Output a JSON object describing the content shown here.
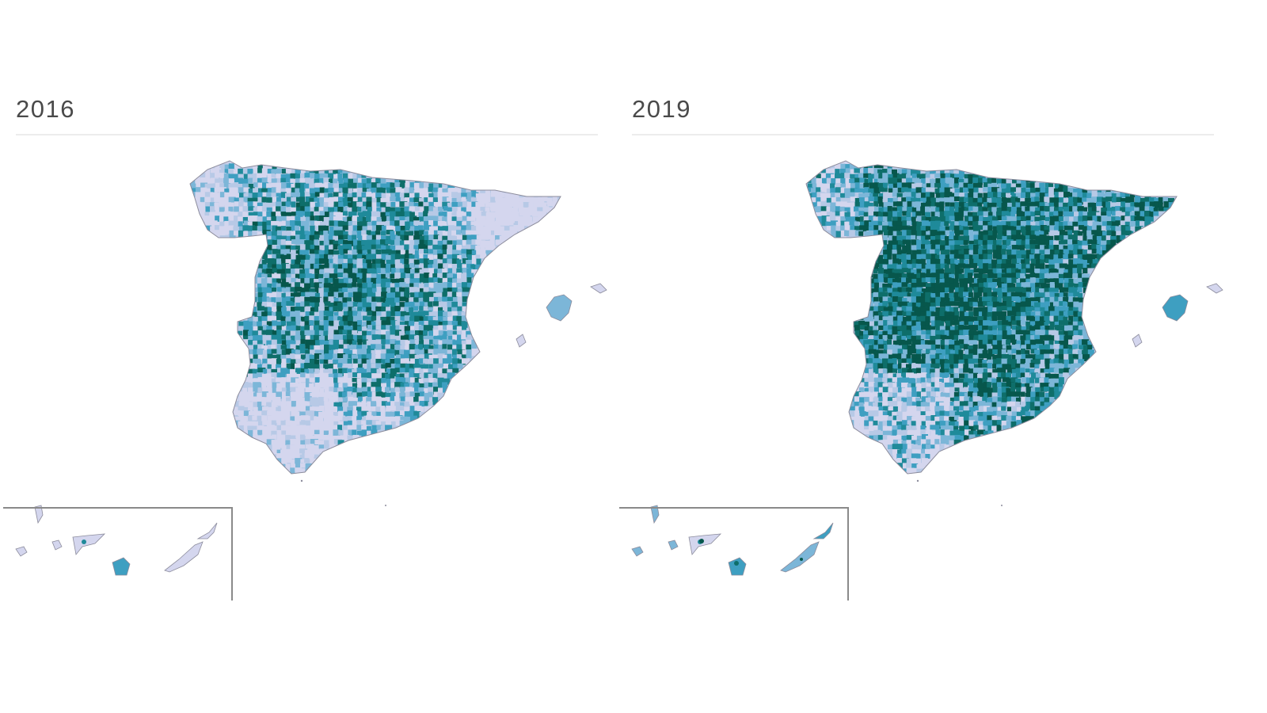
{
  "panels": [
    {
      "id": "left",
      "title": "2016",
      "seed": 16,
      "dark_bias": 0.38,
      "regional_light": [
        "galicia-coast",
        "catalonia",
        "andalusia-west",
        "aragon-north"
      ]
    },
    {
      "id": "right",
      "title": "2019",
      "seed": 19,
      "dark_bias": 0.62,
      "regional_light": [
        "galicia-coast",
        "andalusia-west"
      ]
    }
  ],
  "palette": {
    "lightest": "#d4d6ee",
    "light": "#b7c9e6",
    "mid_light": "#7cb6d8",
    "mid": "#3e9fc1",
    "teal": "#1f8a9a",
    "dark_teal": "#0e6e6a",
    "darkest": "#07574c",
    "outline": "#8c8c9c",
    "title_color": "#4a4a4a",
    "rule_color": "#ececec",
    "inset_border": "#8a8a8a"
  },
  "map": {
    "subject": "Spain municipalities choropleth",
    "insets": [
      "Canary Islands"
    ],
    "islands": [
      "Balearic Islands",
      "Canary Islands"
    ]
  }
}
